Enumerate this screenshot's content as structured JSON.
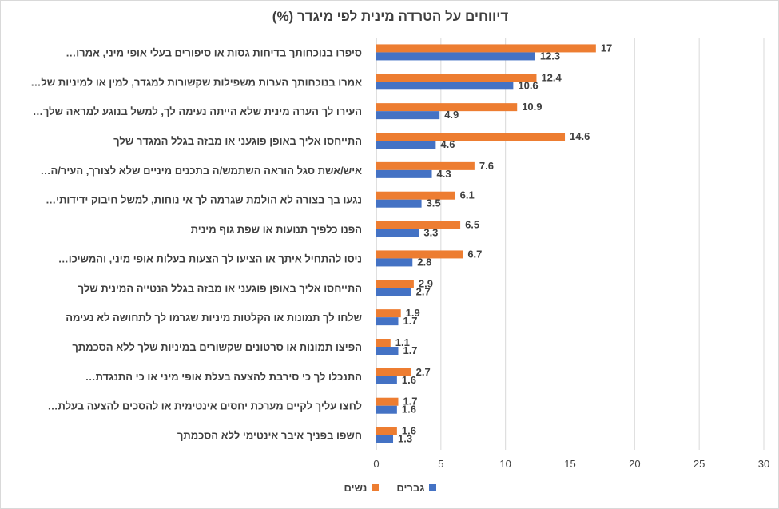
{
  "chart_data": {
    "type": "bar",
    "orientation": "horizontal",
    "title": "דיווחים על הטרדה מינית לפי מיגדר  (%)",
    "xlabel": "",
    "ylabel": "",
    "xlim": [
      0,
      30
    ],
    "x_ticks": [
      "0",
      "5",
      "10",
      "15",
      "20",
      "25",
      "30"
    ],
    "grid": "vertical",
    "legend_position": "bottom",
    "categories": [
      "סיפרו בנוכחותך בדיחות גסות או סיפורים בעלי אופי מיני, אמרו…",
      "אמרו בנוכחותך הערות משפילות שקשורות למגדר, למין או למיניות של…",
      "העירו לך הערה מינית שלא הייתה נעימה לך, למשל בנוגע למראה שלך…",
      "התייחסו אליך באופן פוגעני או מבזה בגלל המגדר שלך",
      "איש/אשת סגל הוראה השתמש/ה בתכנים מיניים שלא לצורך, העיר/ה…",
      "נגעו בך בצורה לא הולמת שגרמה לך אי נוחות, למשל חיבוק ידידותי…",
      "הפנו כלפיך תנועות או שפת גוף מינית",
      "ניסו להתחיל איתך או הציעו לך הצעות בעלות אופי מיני, והמשיכו…",
      "התייחסו אליך באופן פוגעני או מבזה בגלל הנטייה המינית שלך",
      "שלחו לך תמונות או הקלטות מיניות שגרמו לך לתחושה לא נעימה",
      "הפיצו תמונות או סרטונים שקשורים במיניות שלך ללא הסכמתך",
      "התנכלו לך כי סירבת להצעה בעלת אופי מיני או כי התנגדת…",
      "לחצו עליך לקיים מערכת יחסים אינטימית או להסכים להצעה בעלת…",
      "חשפו בפניך איבר אינטימי ללא הסכמתך"
    ],
    "series": [
      {
        "name": "נשים",
        "color": "#ED7D31",
        "values": [
          17,
          12.4,
          10.9,
          14.6,
          7.6,
          6.1,
          6.5,
          6.7,
          2.9,
          1.9,
          1.1,
          2.7,
          1.7,
          1.6
        ]
      },
      {
        "name": "גברים",
        "color": "#4472C4",
        "values": [
          12.3,
          10.6,
          4.9,
          4.6,
          4.3,
          3.5,
          3.3,
          2.8,
          2.7,
          1.7,
          1.7,
          1.6,
          1.6,
          1.3
        ]
      }
    ],
    "legend_order": [
      "נשים",
      "גברים"
    ]
  }
}
